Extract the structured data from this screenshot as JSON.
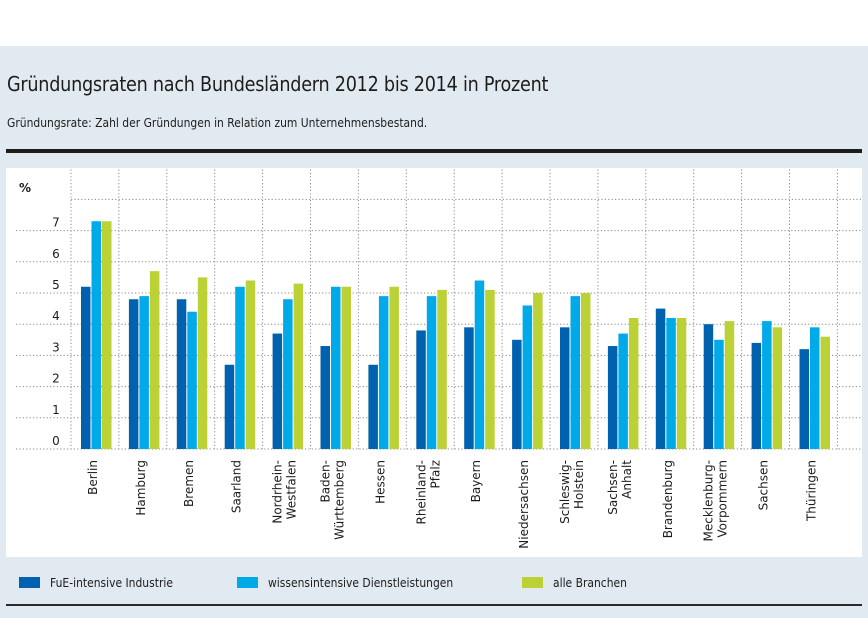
{
  "chart_data": {
    "type": "bar",
    "title": "Gründungsraten nach Bundesländern 2012 bis 2014 in Prozent",
    "subtitle": "Gründungsrate: Zahl der Gründungen in Relation zum Unternehmensbestand.",
    "xlabel": "",
    "ylabel": "%",
    "ylim": [
      0,
      8
    ],
    "yticks": [
      0,
      1,
      2,
      3,
      4,
      5,
      6,
      7
    ],
    "grid": true,
    "legend_position": "bottom",
    "categories": [
      [
        "Berlin"
      ],
      [
        "Hamburg"
      ],
      [
        "Bremen"
      ],
      [
        "Saarland"
      ],
      [
        "Nordrhein-",
        "Westfalen"
      ],
      [
        "Baden-",
        "Württemberg"
      ],
      [
        "Hessen"
      ],
      [
        "Rheinland-",
        "Pfalz"
      ],
      [
        "Bayern"
      ],
      [
        "Niedersachsen"
      ],
      [
        "Schleswig-",
        "Holstein"
      ],
      [
        "Sachsen-",
        "Anhalt"
      ],
      [
        "Brandenburg"
      ],
      [
        "Mecklenburg-",
        "Vorpommern"
      ],
      [
        "Sachsen"
      ],
      [
        "Thüringen"
      ]
    ],
    "series": [
      {
        "name": "FuE-intensive Industrie",
        "color": "#0062ae",
        "values": [
          5.2,
          4.8,
          4.8,
          2.7,
          3.7,
          3.3,
          2.7,
          3.8,
          3.9,
          3.5,
          3.9,
          3.3,
          4.5,
          4.0,
          3.4,
          3.2
        ]
      },
      {
        "name": "wissensintensive Dienstleistungen",
        "color": "#00a9e8",
        "values": [
          7.3,
          4.9,
          4.4,
          5.2,
          4.8,
          5.2,
          4.9,
          4.9,
          5.4,
          4.6,
          4.9,
          3.7,
          4.2,
          3.5,
          4.1,
          3.9
        ]
      },
      {
        "name": "alle Branchen",
        "color": "#bcd136",
        "values": [
          7.3,
          5.7,
          5.5,
          5.4,
          5.3,
          5.2,
          5.2,
          5.1,
          5.1,
          5.0,
          5.0,
          4.2,
          4.2,
          4.1,
          3.9,
          3.6
        ]
      }
    ]
  },
  "legend": [
    {
      "label": "FuE-intensive Industrie",
      "color": "#0062ae"
    },
    {
      "label": "wissensintensive Dienstleistungen",
      "color": "#00a9e8"
    },
    {
      "label": "alle Branchen",
      "color": "#bcd136"
    }
  ]
}
